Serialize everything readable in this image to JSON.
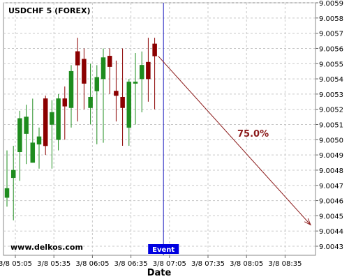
{
  "chart_data": {
    "type": "candlestick",
    "title": "USDCHF 5 (FOREX)",
    "xlabel": "Date",
    "ylabel": "",
    "ylim": [
      9.0043,
      9.0059
    ],
    "y_ticks": [
      "9.0043",
      "9.0044",
      "9.0045",
      "9.0046",
      "9.0047",
      "9.0048",
      "9.0049",
      "9.0050",
      "9.0051",
      "9.0052",
      "9.0053",
      "9.0054",
      "9.0055",
      "9.0056",
      "9.0057",
      "9.0058",
      "9.0059"
    ],
    "x_ticks": [
      "3/8 05:05",
      "3/8 05:35",
      "3/8 06:05",
      "3/8 06:35",
      "3/8 07:05",
      "3/8 07:35",
      "3/8 08:05",
      "3/8 08:35"
    ],
    "x_tick_index": [
      0,
      6,
      12,
      18,
      24,
      30,
      36,
      42
    ],
    "grid": true,
    "watermark": "www.delkos.com",
    "event_label": "Event",
    "event_index": 23.5,
    "projection": {
      "label": "75.0%",
      "from": {
        "index": 23,
        "value": 9.00555
      },
      "to": {
        "index": 45,
        "value": 9.00444
      }
    },
    "candles": [
      {
        "o": 9.00462,
        "h": 9.00493,
        "l": 9.00456,
        "c": 9.00468
      },
      {
        "o": 9.00475,
        "h": 9.00496,
        "l": 9.00447,
        "c": 9.0048
      },
      {
        "o": 9.00492,
        "h": 9.00519,
        "l": 9.00473,
        "c": 9.00514
      },
      {
        "o": 9.00504,
        "h": 9.00523,
        "l": 9.00484,
        "c": 9.00515
      },
      {
        "o": 9.00485,
        "h": 9.00527,
        "l": 9.00485,
        "c": 9.00498
      },
      {
        "o": 9.00497,
        "h": 9.00508,
        "l": 9.00481,
        "c": 9.00502
      },
      {
        "o": 9.00527,
        "h": 9.00529,
        "l": 9.0049,
        "c": 9.00496
      },
      {
        "o": 9.0051,
        "h": 9.00526,
        "l": 9.00481,
        "c": 9.00518
      },
      {
        "o": 9.005,
        "h": 9.0053,
        "l": 9.00493,
        "c": 9.00527
      },
      {
        "o": 9.00527,
        "h": 9.00535,
        "l": 9.005,
        "c": 9.00522
      },
      {
        "o": 9.00521,
        "h": 9.00549,
        "l": 9.00508,
        "c": 9.00545
      },
      {
        "o": 9.00558,
        "h": 9.00567,
        "l": 9.00512,
        "c": 9.00549
      },
      {
        "o": 9.00553,
        "h": 9.0056,
        "l": 9.0052,
        "c": 9.00537
      },
      {
        "o": 9.00521,
        "h": 9.0055,
        "l": 9.0051,
        "c": 9.00528
      },
      {
        "o": 9.00532,
        "h": 9.00549,
        "l": 9.00497,
        "c": 9.00541
      },
      {
        "o": 9.0054,
        "h": 9.0056,
        "l": 9.00498,
        "c": 9.00554
      },
      {
        "o": 9.00555,
        "h": 9.0056,
        "l": 9.0053,
        "c": 9.00548
      },
      {
        "o": 9.00532,
        "h": 9.00552,
        "l": 9.00512,
        "c": 9.00529
      },
      {
        "o": 9.00528,
        "h": 9.0056,
        "l": 9.00496,
        "c": 9.00521
      },
      {
        "o": 9.00508,
        "h": 9.0054,
        "l": 9.00496,
        "c": 9.00538
      },
      {
        "o": 9.00537,
        "h": 9.00557,
        "l": 9.0051,
        "c": 9.00538
      },
      {
        "o": 9.0054,
        "h": 9.00558,
        "l": 9.00518,
        "c": 9.00549
      },
      {
        "o": 9.00551,
        "h": 9.00567,
        "l": 9.00525,
        "c": 9.0054
      },
      {
        "o": 9.00563,
        "h": 9.00567,
        "l": 9.0052,
        "c": 9.00555
      }
    ]
  }
}
